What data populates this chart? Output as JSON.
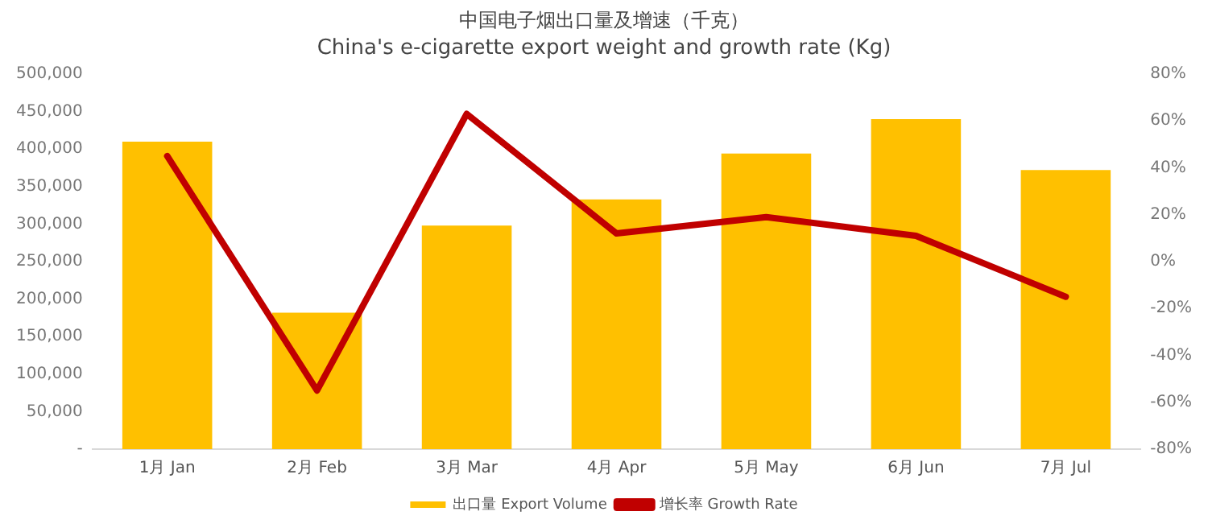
{
  "chart_data": {
    "type": "bar",
    "title": "中国电子烟出口量及增速（千克）",
    "subtitle": "China's e-cigarette export weight and growth rate (Kg)",
    "categories": [
      "1月 Jan",
      "2月 Feb",
      "3月 Mar",
      "4月 Apr",
      "5月 May",
      "6月 Jun",
      "7月 Jul"
    ],
    "series": [
      {
        "name": "出口量 Export Volume",
        "color": "#ffc000",
        "values": [
          410000,
          182000,
          298000,
          333000,
          394000,
          440000,
          372000
        ]
      },
      {
        "name": "增长率 Growth Rate",
        "type": "line",
        "axis": "y2",
        "color": "#c00000",
        "values": [
          45,
          -55,
          63,
          12,
          19,
          11,
          -15
        ]
      }
    ],
    "ylim": [
      0,
      500000
    ],
    "yticks": [
      {
        "value": 0,
        "label": "-"
      },
      {
        "value": 50000,
        "label": "50,000"
      },
      {
        "value": 100000,
        "label": "100,000"
      },
      {
        "value": 150000,
        "label": "150,000"
      },
      {
        "value": 200000,
        "label": "200,000"
      },
      {
        "value": 250000,
        "label": "250,000"
      },
      {
        "value": 300000,
        "label": "300,000"
      },
      {
        "value": 350000,
        "label": "350,000"
      },
      {
        "value": 400000,
        "label": "400,000"
      },
      {
        "value": 450000,
        "label": "450,000"
      },
      {
        "value": 500000,
        "label": "500,000"
      }
    ],
    "y2lim": [
      -80,
      80
    ],
    "y2ticks": [
      {
        "value": -80,
        "label": "-80%"
      },
      {
        "value": -60,
        "label": "-60%"
      },
      {
        "value": -40,
        "label": "-40%"
      },
      {
        "value": -20,
        "label": "-20%"
      },
      {
        "value": 0,
        "label": "0%"
      },
      {
        "value": 20,
        "label": "20%"
      },
      {
        "value": 40,
        "label": "40%"
      },
      {
        "value": 60,
        "label": "60%"
      },
      {
        "value": 80,
        "label": "80%"
      }
    ],
    "grid": false,
    "legend": "bottom",
    "marker": "none"
  }
}
